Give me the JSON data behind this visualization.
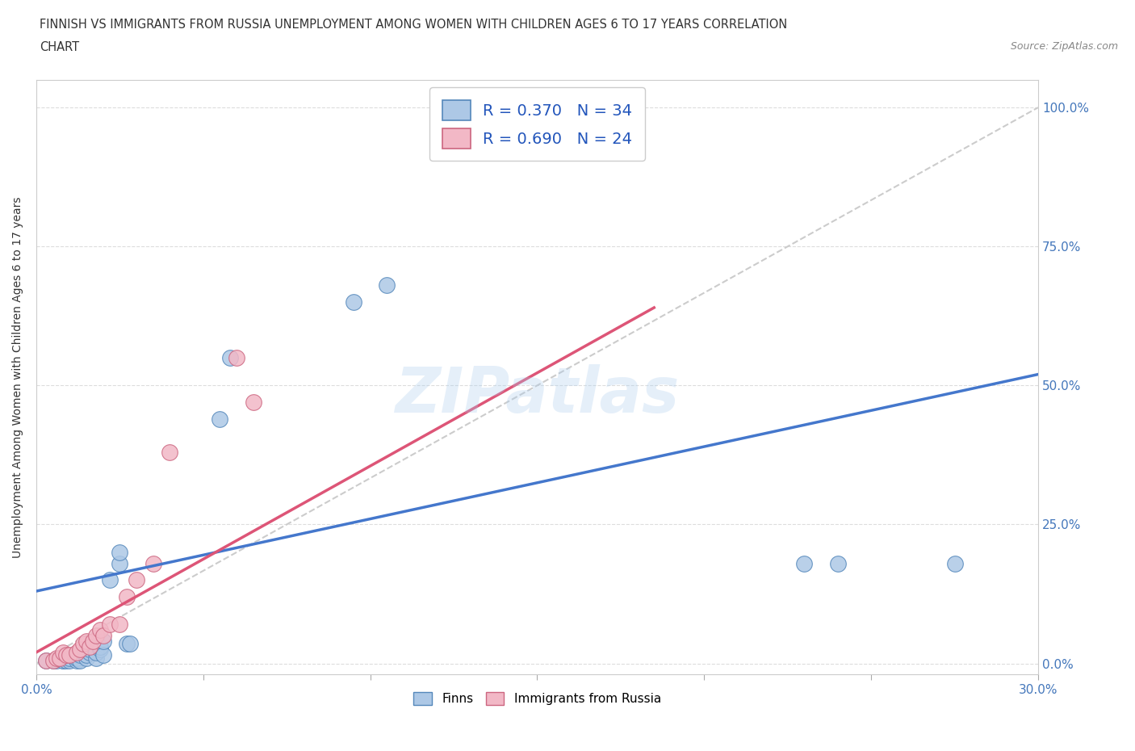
{
  "title_line1": "FINNISH VS IMMIGRANTS FROM RUSSIA UNEMPLOYMENT AMONG WOMEN WITH CHILDREN AGES 6 TO 17 YEARS CORRELATION",
  "title_line2": "CHART",
  "source": "Source: ZipAtlas.com",
  "ylabel": "Unemployment Among Women with Children Ages 6 to 17 years",
  "xlim": [
    0.0,
    0.3
  ],
  "ylim": [
    -0.02,
    1.05
  ],
  "xtick_labels": [
    "0.0%",
    "",
    "",
    "",
    "",
    "",
    "",
    "",
    "",
    "",
    "",
    "",
    "",
    "",
    "",
    "",
    "",
    "",
    "",
    "",
    "",
    "",
    "",
    "",
    "",
    "",
    "",
    "",
    "",
    "30.0%"
  ],
  "xtick_values": [
    0.0,
    0.01,
    0.02,
    0.03,
    0.04,
    0.05,
    0.06,
    0.07,
    0.08,
    0.09,
    0.1,
    0.11,
    0.12,
    0.13,
    0.14,
    0.15,
    0.16,
    0.17,
    0.18,
    0.19,
    0.2,
    0.21,
    0.22,
    0.23,
    0.24,
    0.25,
    0.26,
    0.27,
    0.28,
    0.29,
    0.3
  ],
  "ytick_labels_right": [
    "0.0%",
    "25.0%",
    "50.0%",
    "75.0%",
    "100.0%"
  ],
  "ytick_values": [
    0.0,
    0.25,
    0.5,
    0.75,
    1.0
  ],
  "finns_color": "#adc8e6",
  "finns_edge_color": "#5588bb",
  "russia_color": "#f2b8c6",
  "russia_edge_color": "#cc6680",
  "finns_R": 0.37,
  "finns_N": 34,
  "russia_R": 0.69,
  "russia_N": 24,
  "legend_text_color": "#2255bb",
  "finns_line_color": "#4477cc",
  "russia_line_color": "#dd5577",
  "diagonal_color": "#cccccc",
  "watermark_text": "ZIPatlas",
  "finns_scatter_x": [
    0.003,
    0.005,
    0.006,
    0.008,
    0.008,
    0.009,
    0.01,
    0.01,
    0.012,
    0.012,
    0.013,
    0.013,
    0.015,
    0.015,
    0.016,
    0.016,
    0.018,
    0.018,
    0.019,
    0.019,
    0.02,
    0.02,
    0.022,
    0.025,
    0.025,
    0.027,
    0.028,
    0.055,
    0.058,
    0.095,
    0.105,
    0.23,
    0.24,
    0.275
  ],
  "finns_scatter_y": [
    0.005,
    0.005,
    0.005,
    0.005,
    0.005,
    0.005,
    0.005,
    0.01,
    0.005,
    0.01,
    0.005,
    0.015,
    0.01,
    0.015,
    0.02,
    0.025,
    0.01,
    0.02,
    0.025,
    0.03,
    0.015,
    0.04,
    0.15,
    0.18,
    0.2,
    0.035,
    0.035,
    0.44,
    0.55,
    0.65,
    0.68,
    0.18,
    0.18,
    0.18
  ],
  "russia_scatter_x": [
    0.003,
    0.005,
    0.006,
    0.007,
    0.008,
    0.009,
    0.01,
    0.012,
    0.013,
    0.014,
    0.015,
    0.016,
    0.017,
    0.018,
    0.019,
    0.02,
    0.022,
    0.025,
    0.027,
    0.03,
    0.035,
    0.04,
    0.06,
    0.065
  ],
  "russia_scatter_y": [
    0.005,
    0.005,
    0.01,
    0.01,
    0.02,
    0.015,
    0.015,
    0.02,
    0.025,
    0.035,
    0.04,
    0.03,
    0.04,
    0.05,
    0.06,
    0.05,
    0.07,
    0.07,
    0.12,
    0.15,
    0.18,
    0.38,
    0.55,
    0.47
  ],
  "background_color": "#ffffff",
  "grid_color": "#dddddd",
  "fig_width": 14.06,
  "fig_height": 9.3,
  "finns_line_x": [
    0.0,
    0.3
  ],
  "finns_line_y": [
    0.13,
    0.52
  ],
  "russia_line_x": [
    0.0,
    0.185
  ],
  "russia_line_y": [
    0.02,
    0.64
  ]
}
